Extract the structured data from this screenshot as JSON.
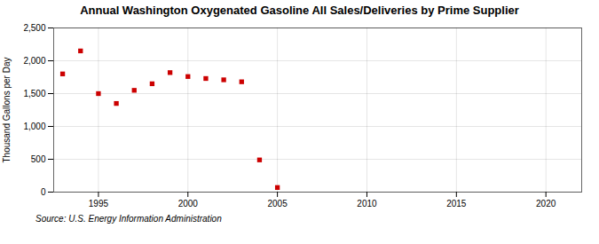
{
  "chart_data": {
    "type": "scatter",
    "title": "Annual Washington Oxygenated Gasoline All Sales/Deliveries by Prime Supplier",
    "ylabel": "Thousand Gallons per Day",
    "source": "Source: U.S. Energy Information Administration",
    "x": [
      1993,
      1994,
      1995,
      1996,
      1997,
      1998,
      1999,
      2000,
      2001,
      2002,
      2003,
      2004,
      2005
    ],
    "values": [
      1800,
      2150,
      1500,
      1350,
      1550,
      1650,
      1820,
      1760,
      1730,
      1710,
      1680,
      490,
      70
    ],
    "color": "#cc0000",
    "marker": "square",
    "xlim": [
      1992.5,
      2022
    ],
    "xticks": [
      1995,
      2000,
      2005,
      2010,
      2015,
      2020
    ],
    "ylim": [
      0,
      2500
    ],
    "yticks": [
      0,
      500,
      {
        "value": 1000,
        "label": "1,000"
      },
      {
        "value": 1500,
        "label": "1,500"
      },
      {
        "value": 2000,
        "label": "2,000"
      },
      {
        "value": 2500,
        "label": "2,500"
      }
    ],
    "grid": true
  }
}
